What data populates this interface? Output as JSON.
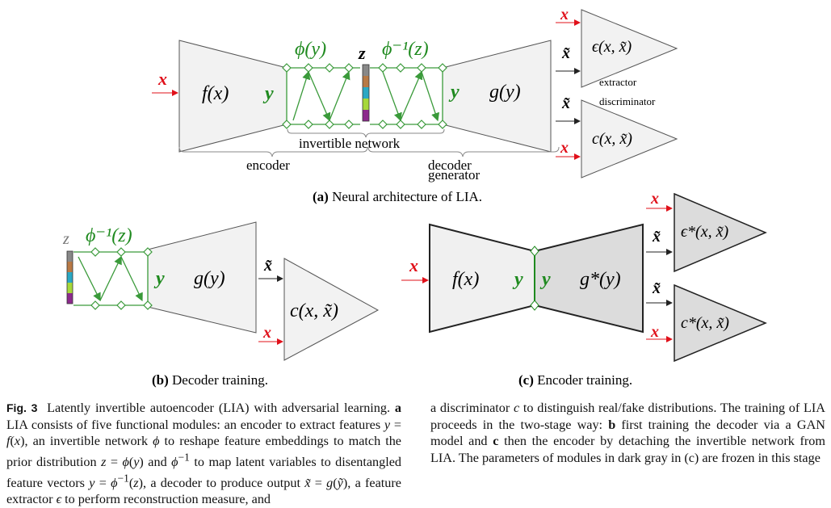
{
  "panel_a": {
    "x": "x",
    "fx": "f(x)",
    "y_left": "y",
    "phi_y": "ϕ(y)",
    "z": "z",
    "phi_inv_z": "ϕ⁻¹(z)",
    "y_right": "y",
    "gy": "g(y)",
    "x_out": "x",
    "xt1": "x̃",
    "xt2": "x̃",
    "x_out2": "x",
    "eps": "ϵ(x, x̃)",
    "c": "c(x, x̃)",
    "extractor": "extractor",
    "discriminator": "discriminator",
    "invertible_network": "invertible network",
    "encoder": "encoder",
    "decoder": "decoder",
    "generator": "generator",
    "caption_label": "(a)",
    "caption_text": " Neural architecture of LIA."
  },
  "panel_b": {
    "z": "z",
    "phi_inv_z": "ϕ⁻¹(z)",
    "y": "y",
    "gy": "g(y)",
    "xt": "x̃",
    "x": "x",
    "c": "c(x, x̃)",
    "caption_label": "(b)",
    "caption_text": " Decoder training."
  },
  "panel_c": {
    "x": "x",
    "fx": "f(x)",
    "y1": "y",
    "y2": "y",
    "gstar": "g*(y)",
    "xt1": "x̃",
    "xt2": "x̃",
    "x_out": "x",
    "x_out2": "x",
    "eps_star": "ϵ*(x, x̃)",
    "c_star": "c*(x, x̃)",
    "caption_label": "(c)",
    "caption_text": " Encoder training."
  },
  "colors": {
    "red": "#e0101a",
    "green": "#1f8a1f",
    "light_gray": "#f2f2f2",
    "dark_gray": "#dcdcdc"
  },
  "caption": {
    "label": "Fig. 3",
    "left_html": "Latently invertible autoencoder (LIA) with adversarial learning. <b>a</b> LIA consists of five functional modules: an encoder to extract features <i>y</i> = <i>f</i>(<i>x</i>), an invertible network <i>ϕ</i> to reshape feature embeddings to match the prior distribution <i>z</i> = <i>ϕ</i>(<i>y</i>) and <i>ϕ</i><sup>−1</sup> to map latent variables to disentangled feature vectors <i>y</i> = <i>ϕ</i><sup>−1</sup>(<i>z</i>), a decoder to produce output <i>x̃</i> = <i>g</i>(<i>ỹ</i>), a feature extractor <i>ϵ</i> to perform reconstruction measure, and",
    "right_html": "a discriminator <i>c</i> to distinguish real/fake distributions. The training of LIA proceeds in the two-stage way: <b>b</b> first training the decoder via a GAN model and <b>c</b> then the encoder by detaching the invertible network from LIA. The parameters of modules in dark gray in (c) are frozen in this stage"
  }
}
